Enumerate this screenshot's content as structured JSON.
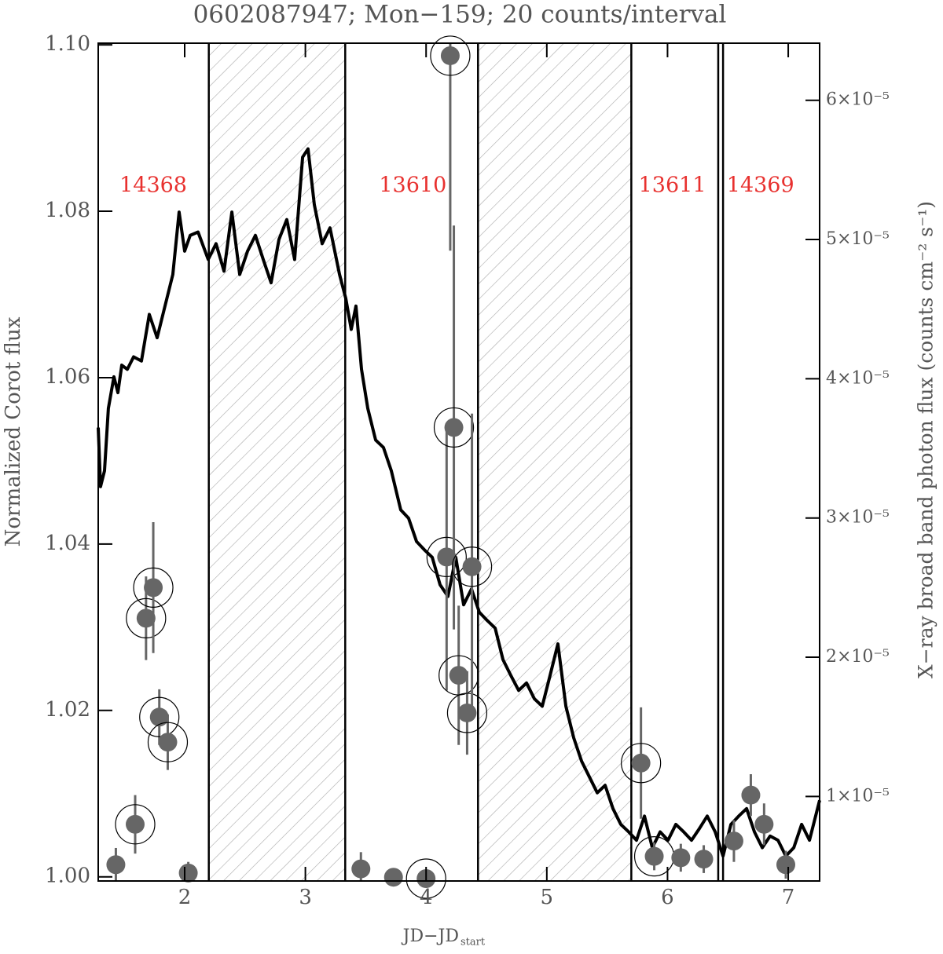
{
  "chart_data": {
    "type": "line",
    "title": "0602087947; Mon−159; 20 counts/interval",
    "x_label": {
      "main": "JD−JD",
      "sub": "start"
    },
    "y_label": "Normalized Corot flux",
    "y2_label": "X−ray broad band photon flux (counts cm⁻² s⁻¹)",
    "xlim": [
      1.284,
      7.26
    ],
    "xticks": [
      2,
      3,
      4,
      5,
      6,
      7
    ],
    "ylim": [
      0.9995,
      1.1002
    ],
    "yticks": [
      {
        "value": 1.0,
        "label": "1.00"
      },
      1.02,
      1.04,
      1.06,
      1.08,
      {
        "value": 1.1,
        "label": "1.10"
      }
    ],
    "y2lim": [
      3.93e-06,
      6.41e-05
    ],
    "y2ticks": [
      {
        "value": 1e-05,
        "label": "1×10⁻⁵"
      },
      {
        "value": 2e-05,
        "label": "2×10⁻⁵"
      },
      {
        "value": 3e-05,
        "label": "3×10⁻⁵"
      },
      {
        "value": 4e-05,
        "label": "4×10⁻⁵"
      },
      {
        "value": 5e-05,
        "label": "5×10⁻⁵"
      },
      {
        "value": 6e-05,
        "label": "6×10⁻⁵"
      }
    ],
    "shaded": [
      [
        2.2,
        3.33
      ],
      [
        4.43,
        5.7
      ]
    ],
    "vlines": [
      2.2,
      3.33,
      4.43,
      5.7,
      6.42,
      6.46
    ],
    "annotations": [
      {
        "text": "14368",
        "x": 1.74,
        "y": 1.083
      },
      {
        "text": "13610",
        "x": 3.89,
        "y": 1.083
      },
      {
        "text": "13611",
        "x": 6.04,
        "y": 1.083
      },
      {
        "text": "14369",
        "x": 6.77,
        "y": 1.083
      }
    ],
    "annotation_color": "#e8312f",
    "series": [
      {
        "color": "#000000",
        "x": [
          1.284,
          1.303,
          1.336,
          1.368,
          1.414,
          1.447,
          1.479,
          1.525,
          1.577,
          1.642,
          1.707,
          1.772,
          1.837,
          1.902,
          1.954,
          2.0,
          2.046,
          2.111,
          2.195,
          2.26,
          2.326,
          2.391,
          2.456,
          2.521,
          2.586,
          2.651,
          2.716,
          2.781,
          2.846,
          2.911,
          2.977,
          3.022,
          3.074,
          3.139,
          3.204,
          3.283,
          3.335,
          3.38,
          3.419,
          3.465,
          3.517,
          3.582,
          3.647,
          3.712,
          3.79,
          3.855,
          3.921,
          3.986,
          4.051,
          4.116,
          4.181,
          4.246,
          4.311,
          4.376,
          4.441,
          4.507,
          4.572,
          4.637,
          4.702,
          4.767,
          4.832,
          4.897,
          4.962,
          5.027,
          5.092,
          5.158,
          5.223,
          5.288,
          5.353,
          5.418,
          5.483,
          5.548,
          5.613,
          5.678,
          5.743,
          5.809,
          5.874,
          5.939,
          6.004,
          6.069,
          6.134,
          6.199,
          6.264,
          6.329,
          6.395,
          6.46,
          6.525,
          6.59,
          6.655,
          6.72,
          6.785,
          6.85,
          6.915,
          6.98,
          7.046,
          7.111,
          7.176,
          7.26
        ],
        "values": [
          1.054,
          1.0469,
          1.0488,
          1.0563,
          1.0601,
          1.0582,
          1.0615,
          1.061,
          1.0625,
          1.062,
          1.0676,
          1.0648,
          1.0686,
          1.0724,
          1.0799,
          1.0752,
          1.0771,
          1.0775,
          1.0742,
          1.0761,
          1.0728,
          1.0799,
          1.0724,
          1.0752,
          1.0771,
          1.0742,
          1.0714,
          1.0766,
          1.079,
          1.0742,
          1.0865,
          1.0875,
          1.0808,
          1.0761,
          1.078,
          1.0724,
          1.0695,
          1.0658,
          1.0686,
          1.061,
          1.0563,
          1.0525,
          1.0516,
          1.0488,
          1.0441,
          1.0431,
          1.0403,
          1.0393,
          1.0384,
          1.0351,
          1.0337,
          1.0384,
          1.0327,
          1.0346,
          1.0318,
          1.0308,
          1.0299,
          1.0261,
          1.0242,
          1.0224,
          1.0233,
          1.0214,
          1.0205,
          1.0242,
          1.028,
          1.0205,
          1.0167,
          1.0139,
          1.012,
          1.0101,
          1.011,
          1.0082,
          1.0063,
          1.0054,
          1.0044,
          1.0073,
          1.0035,
          1.0054,
          1.0044,
          1.0063,
          1.0054,
          1.0044,
          1.0058,
          1.0073,
          1.0054,
          1.0025,
          1.0063,
          1.0073,
          1.0082,
          1.0054,
          1.0035,
          1.0049,
          1.0044,
          1.0025,
          1.0035,
          1.0063,
          1.0044,
          1.0092
        ]
      },
      {
        "axis": "y2",
        "type": "scatter",
        "color": "#666666",
        "ring_color": "#000000",
        "x": [
          1.43,
          1.59,
          1.68,
          1.74,
          1.79,
          1.86,
          2.03,
          3.46,
          3.73,
          4.0,
          4.17,
          4.2,
          4.23,
          4.27,
          4.34,
          4.38,
          5.78,
          5.89,
          6.11,
          6.3,
          6.55,
          6.69,
          6.8,
          6.98
        ],
        "values": [
          5.1e-06,
          8e-06,
          2.28e-05,
          2.5e-05,
          1.57e-05,
          1.39e-05,
          4.5e-06,
          4.8e-06,
          4.2e-06,
          4.1e-06,
          2.72e-05,
          6.32e-05,
          3.65e-05,
          1.87e-05,
          1.6e-05,
          2.65e-05,
          1.24e-05,
          5.7e-06,
          5.6e-06,
          5.5e-06,
          6.8e-06,
          1.01e-05,
          8e-06,
          5.1e-06
        ],
        "errors": [
          1.2e-06,
          2.1e-06,
          3e-06,
          4.7e-06,
          2e-06,
          2e-06,
          8e-07,
          1.2e-06,
          5e-07,
          5e-07,
          9.6e-06,
          1.4e-05,
          1.45e-05,
          5e-06,
          3e-06,
          1.1e-05,
          4e-06,
          1e-06,
          1e-06,
          1e-06,
          1.5e-06,
          1.5e-06,
          1.5e-06,
          1e-06
        ],
        "circled": [
          false,
          true,
          true,
          true,
          true,
          true,
          false,
          false,
          false,
          true,
          true,
          true,
          true,
          true,
          true,
          true,
          true,
          true,
          false,
          false,
          false,
          false,
          false,
          false
        ]
      }
    ]
  }
}
